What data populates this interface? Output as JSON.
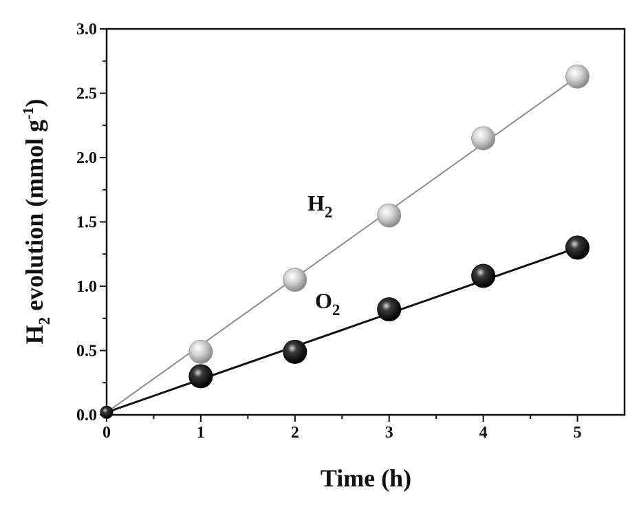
{
  "chart_data": {
    "type": "scatter",
    "title": "",
    "xlabel": "Time (h)",
    "ylabel": {
      "base": "H",
      "base_sub": "2",
      "main": " evolution  (mmol g",
      "sup": "-1",
      "close": ")"
    },
    "xlim": [
      0,
      5.5
    ],
    "ylim": [
      0,
      3.0
    ],
    "x_ticks": [
      0,
      1,
      2,
      3,
      4,
      5
    ],
    "x_tick_labels": [
      "0",
      "1",
      "2",
      "3",
      "4",
      "5"
    ],
    "y_ticks": [
      0,
      0.5,
      1.0,
      1.5,
      2.0,
      2.5,
      3.0
    ],
    "y_tick_labels": [
      "0.0",
      "0.5",
      "1.0",
      "1.5",
      "2.0",
      "2.5",
      "3.0"
    ],
    "grid": false,
    "legend": "inline labels",
    "series": [
      {
        "name": "H2",
        "label_main": "H",
        "label_sub": "2",
        "marker_color": "#bdbdbd",
        "line_color": "#8c8c8c",
        "x": [
          0,
          1,
          2,
          3,
          4,
          5
        ],
        "values": [
          0.02,
          0.49,
          1.05,
          1.55,
          2.15,
          2.63
        ],
        "fit_line": [
          [
            0,
            0.02
          ],
          [
            5,
            2.63
          ]
        ]
      },
      {
        "name": "O2",
        "label_main": "O",
        "label_sub": "2",
        "marker_color": "#1a1a1a",
        "line_color": "#111111",
        "x": [
          0,
          1,
          2,
          3,
          4,
          5
        ],
        "values": [
          0.02,
          0.3,
          0.49,
          0.82,
          1.08,
          1.3
        ],
        "fit_line": [
          [
            0,
            0.02
          ],
          [
            5,
            1.3
          ]
        ]
      }
    ]
  }
}
